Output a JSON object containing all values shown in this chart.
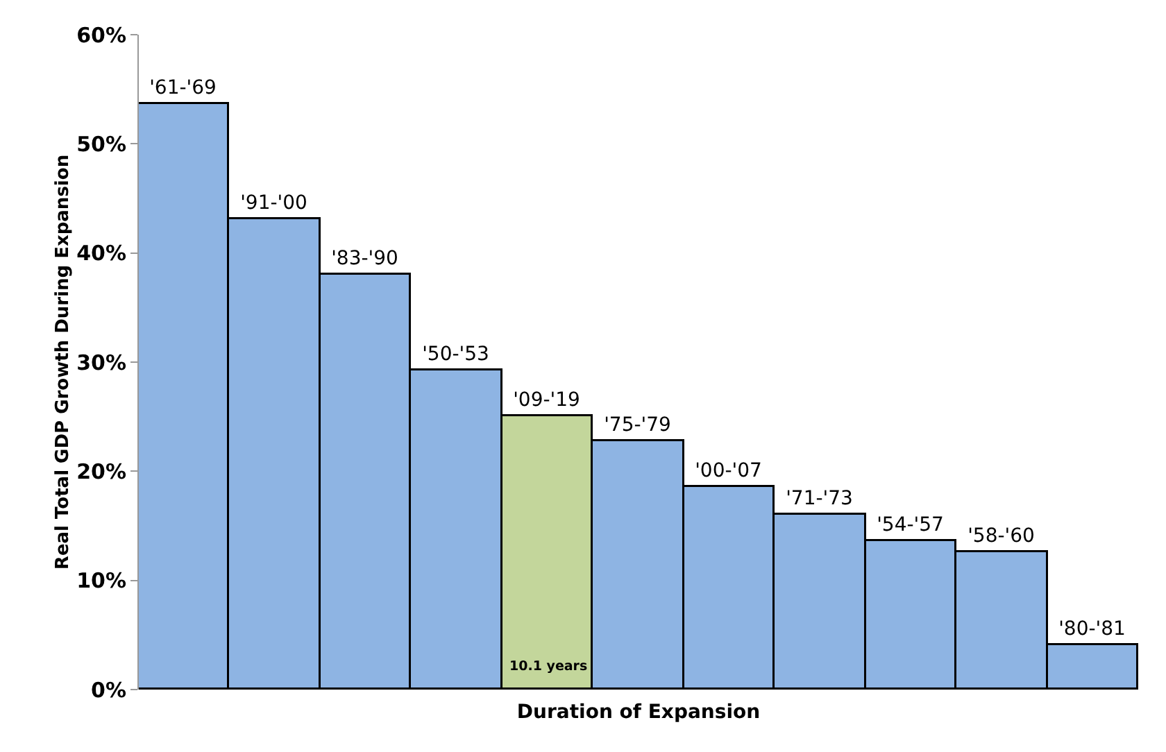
{
  "chart_data": {
    "type": "bar",
    "xlabel": "Duration of Expansion",
    "ylabel": "Real Total GDP Growth During Expansion",
    "categories": [
      "'61-'69",
      "'91-'00",
      "'83-'90",
      "'50-'53",
      "'09-'19",
      "'75-'79",
      "'00-'07",
      "'71-'73",
      "'54-'57",
      "'58-'60",
      "'80-'81"
    ],
    "values": [
      53.7,
      43.1,
      38.0,
      29.2,
      25.1,
      22.8,
      18.6,
      16.0,
      13.6,
      12.6,
      4.1
    ],
    "colors": [
      "#8eb4e3",
      "#8eb4e3",
      "#8eb4e3",
      "#8eb4e3",
      "#c3d69b",
      "#8eb4e3",
      "#8eb4e3",
      "#8eb4e3",
      "#8eb4e3",
      "#8eb4e3",
      "#8eb4e3"
    ],
    "ylim": [
      0,
      60
    ],
    "yticks": [
      {
        "value": 0,
        "label": "0%"
      },
      {
        "value": 10,
        "label": "10%"
      },
      {
        "value": 20,
        "label": "20%"
      },
      {
        "value": 30,
        "label": "30%"
      },
      {
        "value": 40,
        "label": "40%"
      },
      {
        "value": 50,
        "label": "50%"
      },
      {
        "value": 60,
        "label": "60%"
      }
    ],
    "annotations": [
      "10.1 years"
    ],
    "grid": false,
    "legend": false
  }
}
